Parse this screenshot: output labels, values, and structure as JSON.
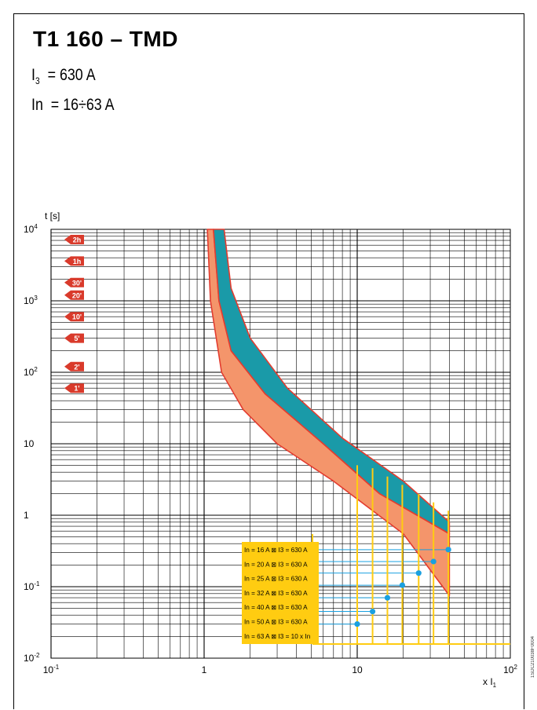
{
  "title": "T1 160 – TMD",
  "params": [
    {
      "sym": "I",
      "sub": "3",
      "text": "= 630 A"
    },
    {
      "sym": "In",
      "sub": "",
      "text": "= 16÷63 A"
    }
  ],
  "doc_code": "1SDC210038F0004",
  "chart_data": {
    "type": "line",
    "title": "",
    "xlabel_text": "x I",
    "xlabel_sub": "1",
    "ylabel": "t [s]",
    "x_scale": "log",
    "y_scale": "log",
    "xlim": [
      0.1,
      100
    ],
    "ylim": [
      0.01,
      10000
    ],
    "grid": true,
    "x_ticks": [
      {
        "v": 0.1,
        "base": "10",
        "exp": "-1"
      },
      {
        "v": 1,
        "base": "1",
        "exp": ""
      },
      {
        "v": 10,
        "base": "10",
        "exp": ""
      },
      {
        "v": 100,
        "base": "10",
        "exp": "2"
      }
    ],
    "y_ticks": [
      {
        "v": 10000,
        "base": "10",
        "exp": "4"
      },
      {
        "v": 1000,
        "base": "10",
        "exp": "3"
      },
      {
        "v": 100,
        "base": "10",
        "exp": "2"
      },
      {
        "v": 10,
        "base": "10",
        "exp": ""
      },
      {
        "v": 1,
        "base": "1",
        "exp": ""
      },
      {
        "v": 0.1,
        "base": "10",
        "exp": "-1"
      },
      {
        "v": 0.01,
        "base": "10",
        "exp": "-2"
      }
    ],
    "time_markers": [
      {
        "label": "2h",
        "seconds": 7200
      },
      {
        "label": "1h",
        "seconds": 3600
      },
      {
        "label": "30'",
        "seconds": 1800
      },
      {
        "label": "20'",
        "seconds": 1200
      },
      {
        "label": "10'",
        "seconds": 600
      },
      {
        "label": "5'",
        "seconds": 300
      },
      {
        "label": "2'",
        "seconds": 120
      },
      {
        "label": "1'",
        "seconds": 60
      }
    ],
    "bands": [
      {
        "name": "",
        "color": "#f4956b",
        "lower": [
          [
            1.05,
            10000
          ],
          [
            1.1,
            1000
          ],
          [
            1.3,
            100
          ],
          [
            1.8,
            30
          ],
          [
            3,
            10
          ],
          [
            7,
            3
          ],
          [
            20,
            0.55
          ],
          [
            40,
            0.075
          ]
        ],
        "upper": [
          [
            1.15,
            10000
          ],
          [
            1.25,
            1000
          ],
          [
            1.5,
            200
          ],
          [
            2.5,
            50
          ],
          [
            6,
            10
          ],
          [
            14,
            2
          ],
          [
            40,
            0.55
          ]
        ]
      },
      {
        "name": "",
        "color": "#1a9aa8",
        "lower": [
          [
            1.15,
            10000
          ],
          [
            1.25,
            1000
          ],
          [
            1.5,
            200
          ],
          [
            2.5,
            50
          ],
          [
            6,
            10
          ],
          [
            14,
            2
          ],
          [
            40,
            0.55
          ]
        ],
        "upper": [
          [
            1.35,
            10000
          ],
          [
            1.5,
            1500
          ],
          [
            2,
            300
          ],
          [
            3.5,
            60
          ],
          [
            8,
            12
          ],
          [
            20,
            3
          ],
          [
            40,
            0.8
          ]
        ]
      }
    ],
    "magnetic_settings": [
      {
        "label": "In = 16 A  ⊠  I3 = 630 A",
        "x_multiple": 39.4,
        "t": 0.33
      },
      {
        "label": "In = 20 A  ⊠  I3 = 630 A",
        "x_multiple": 31.5,
        "t": 0.225
      },
      {
        "label": "In = 25 A  ⊠  I3 = 630 A",
        "x_multiple": 25.2,
        "t": 0.155
      },
      {
        "label": "In = 32 A  ⊠  I3 = 630 A",
        "x_multiple": 19.7,
        "t": 0.105
      },
      {
        "label": "In = 40 A  ⊠  I3 = 630 A",
        "x_multiple": 15.75,
        "t": 0.07
      },
      {
        "label": "In = 50 A  ⊠  I3 = 630 A",
        "x_multiple": 12.6,
        "t": 0.045
      },
      {
        "label": "In = 63 A  ⊠  I3 = 10 x In",
        "x_multiple": 10,
        "t": 0.03
      }
    ],
    "colors": {
      "grid": "#000000",
      "band_edge": "#e33c2f",
      "magnetic": "#ffcc11",
      "legend_bg": "#ffcc11",
      "setting_line": "#1aa0e0",
      "marker": "#d93a2b"
    }
  }
}
